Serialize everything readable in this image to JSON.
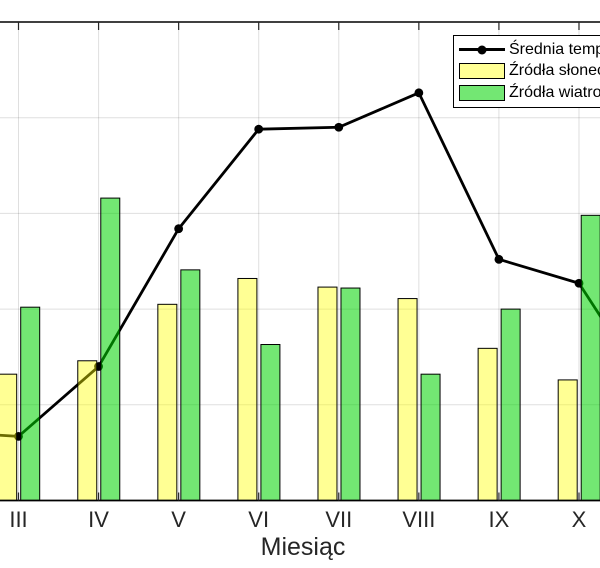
{
  "chart_data": {
    "type": "combo-bar-line",
    "categories": [
      "III",
      "IV",
      "V",
      "VI",
      "VII",
      "VIII",
      "IX",
      "X"
    ],
    "xlabel": "Miesiąc",
    "ylim": [
      0,
      25
    ],
    "ytick_step": 5,
    "grid": true,
    "legend_position": "top-right, clipped by right image edge",
    "series": [
      {
        "name": "Średnia temperatura",
        "type": "line",
        "color": "#000000",
        "marker": "filled-circle",
        "values": [
          3.35,
          7.0,
          14.2,
          19.4,
          19.5,
          21.3,
          12.6,
          11.35
        ],
        "offscreen_prev_value": 3.6,
        "offscreen_next_value": 4.9
      },
      {
        "name": "Źródła słoneczne",
        "type": "bar",
        "color": "#FFFF00",
        "fill_opacity": 0.42,
        "values": [
          6.6,
          7.3,
          10.25,
          11.6,
          11.15,
          10.55,
          7.95,
          6.3
        ]
      },
      {
        "name": "Źródła wiatrowe",
        "type": "bar",
        "color": "#00D400",
        "fill_opacity": 0.55,
        "values": [
          10.1,
          15.8,
          12.05,
          8.15,
          11.1,
          6.6,
          10.0,
          14.9
        ]
      }
    ],
    "axis_color": "#262626",
    "gridline_color": "rgba(38,38,38,0.15)"
  }
}
